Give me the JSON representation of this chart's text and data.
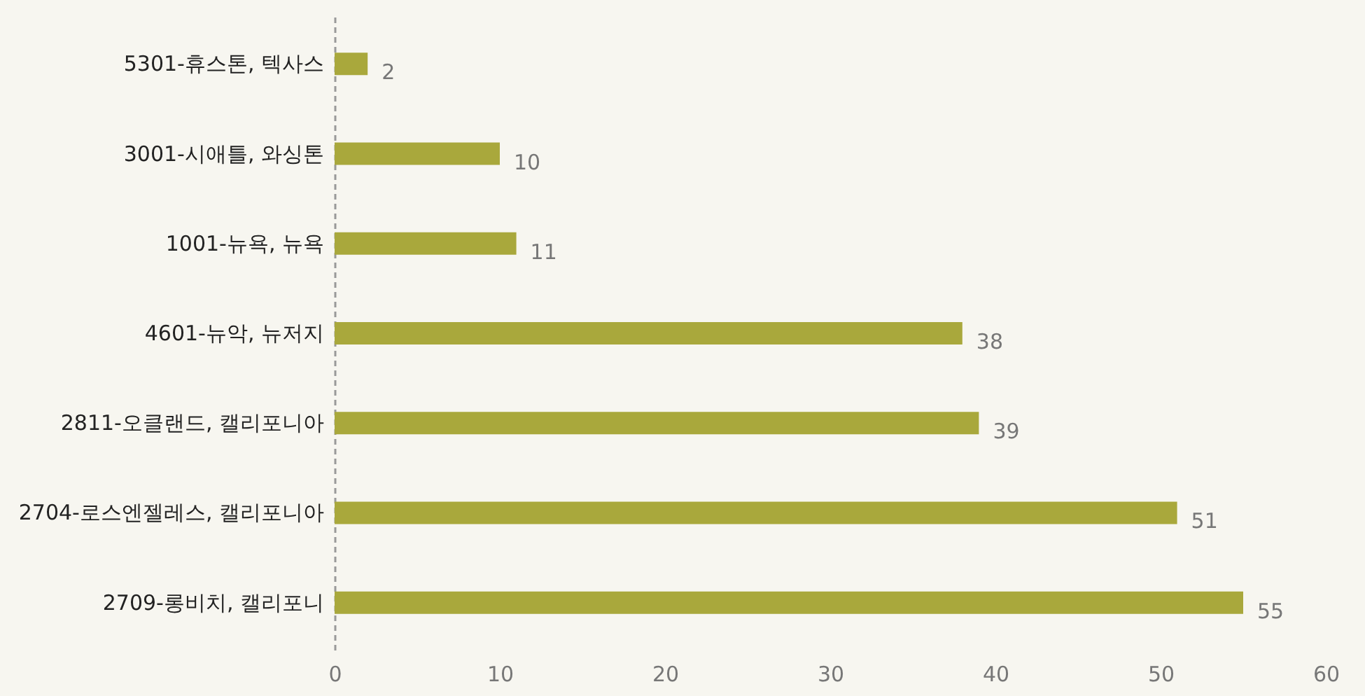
{
  "chart_data": {
    "type": "bar",
    "orientation": "horizontal",
    "categories": [
      "5301-휴스톤, 텍사스",
      "3001-시애틀, 와싱톤",
      "1001-뉴욕, 뉴욕",
      "4601-뉴악, 뉴저지",
      "2811-오클랜드, 캘리포니아",
      "2704-로스엔젤레스, 캘리포니아",
      "2709-롱비치, 캘리포니"
    ],
    "values": [
      2,
      10,
      11,
      38,
      39,
      51,
      55
    ],
    "color": "#a9a83c",
    "xlim": [
      0,
      60
    ],
    "xticks": [
      0,
      10,
      20,
      30,
      40,
      50,
      60
    ],
    "data_labels": true
  }
}
